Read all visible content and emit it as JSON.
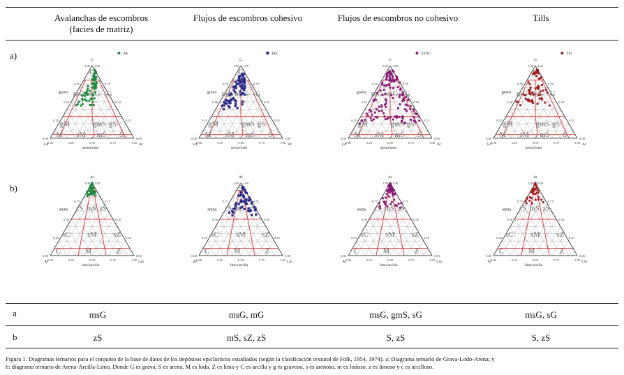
{
  "header": {
    "columns": [
      {
        "title": "Avalanchas de escombros",
        "subtitle": "(facies de matriz)"
      },
      {
        "title": "Flujos de escombros cohesivo",
        "subtitle": ""
      },
      {
        "title": "Flujos de escombros no cohesivo",
        "subtitle": ""
      },
      {
        "title": "Tills",
        "subtitle": ""
      }
    ]
  },
  "rows": {
    "a_label": "a)",
    "b_label": "b)"
  },
  "diagram_a": {
    "apex_top": "G",
    "apex_left": "Ld",
    "apex_right": "Ar",
    "side_left": "grava",
    "bottom_axis": "arena/lodo",
    "fields": [
      "G",
      "msG",
      "mG",
      "sG",
      "gM",
      "gmS",
      "gS",
      "M",
      "sM",
      "mS",
      "S"
    ],
    "ticks_left": [
      "1.00",
      "0.75",
      "0.50",
      "0.25",
      "0.00"
    ],
    "ticks_right": [
      "0.00",
      "0.25",
      "0.50",
      "0.75",
      "1.00"
    ],
    "ticks_bottom": [
      "0.00",
      "0.25",
      "0.50",
      "0.75",
      "1.00"
    ]
  },
  "diagram_b": {
    "apex_top": "Ar",
    "apex_left": "Al",
    "apex_right": "Lm",
    "side_left": "arena",
    "bottom_axis": "limo/arcilla",
    "fields": [
      "S",
      "cS",
      "mS",
      "zS",
      "sC",
      "sM",
      "sZ",
      "C",
      "M",
      "Z"
    ],
    "ticks_left": [
      "1.00",
      "0.75",
      "0.50",
      "0.25",
      "0.00"
    ],
    "ticks_right": [
      "0.00",
      "0.25",
      "0.50",
      "0.75",
      "1.00"
    ],
    "ticks_bottom": [
      "0.00",
      "0.25",
      "0.50",
      "0.75",
      "1.00"
    ]
  },
  "legends": [
    {
      "label": "AE",
      "color": "#1a8a3a",
      "marker": "star"
    },
    {
      "label": "FEC",
      "color": "#2a2a8a",
      "marker": "square"
    },
    {
      "label": "FENC",
      "color": "#8a1a7a",
      "marker": "circle"
    },
    {
      "label": "Till",
      "color": "#a32020",
      "marker": "circle"
    }
  ],
  "summary_table": {
    "rows": [
      {
        "label": "a",
        "values": [
          "msG",
          "msG, mG",
          "msG, gmS, sG",
          "msG, sG"
        ]
      },
      {
        "label": "b",
        "values": [
          "zS",
          "mS, sZ, zS",
          "S, zS",
          "S, zS"
        ]
      }
    ]
  },
  "caption": {
    "line1": "Figura 1. Diagramas ternarios para el conjunto de la base de datos de los depósitos epiclásticos estudiados (según la clasificación textural de Folk, 1954, 1974). a: Diagrama ternario de Grava-Lodo-Arena; y",
    "line2": "b: diagrama ternario de Arena-Arcilla-Limo. Donde G es grava, S es arena, M es lodo, Z es limo y C es arcilla y g es gravoso, s es arenoso, m es lodoso, z es limoso y  c es arcilloso."
  },
  "colors": {
    "grid": "#9a9a9a",
    "boundary": "#d83030",
    "field_text": "#8c8c8c"
  }
}
